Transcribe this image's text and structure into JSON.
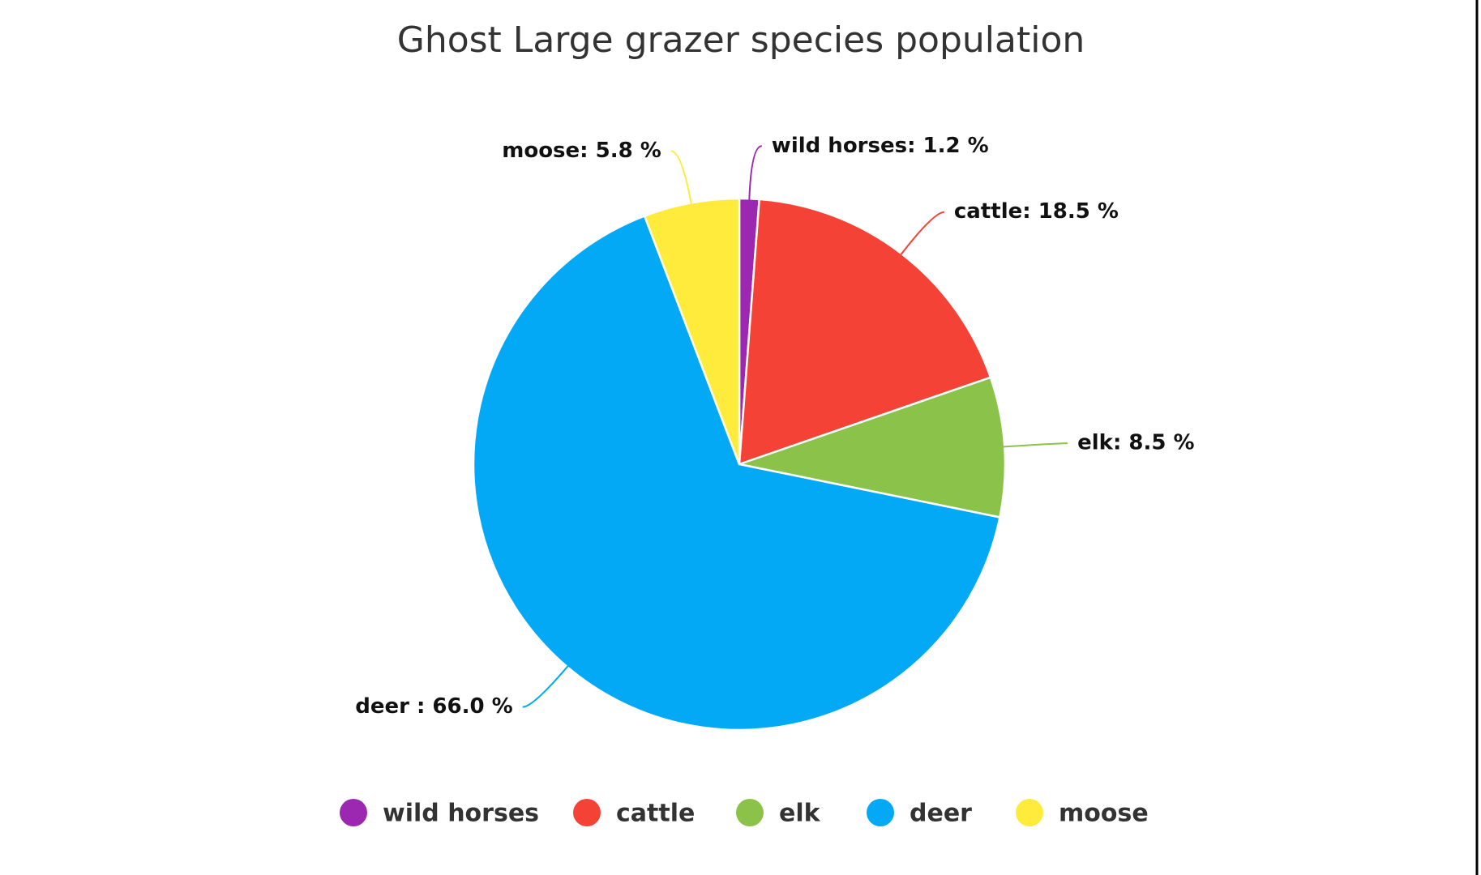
{
  "chart_data": {
    "type": "pie",
    "title": "Ghost Large grazer species population",
    "categories": [
      "wild horses",
      "cattle",
      "elk",
      "deer",
      "moose"
    ],
    "values": [
      1.2,
      18.5,
      8.5,
      66.0,
      5.8
    ],
    "value_labels": [
      "wild horses: 1.2 %",
      "cattle: 18.5 %",
      "elk: 8.5 %",
      "deer : 66.0 %",
      "moose: 5.8 %"
    ],
    "colors": [
      "#9c27b0",
      "#f44336",
      "#8bc34a",
      "#03a9f4",
      "#ffeb3b"
    ],
    "legend": "bottom"
  }
}
